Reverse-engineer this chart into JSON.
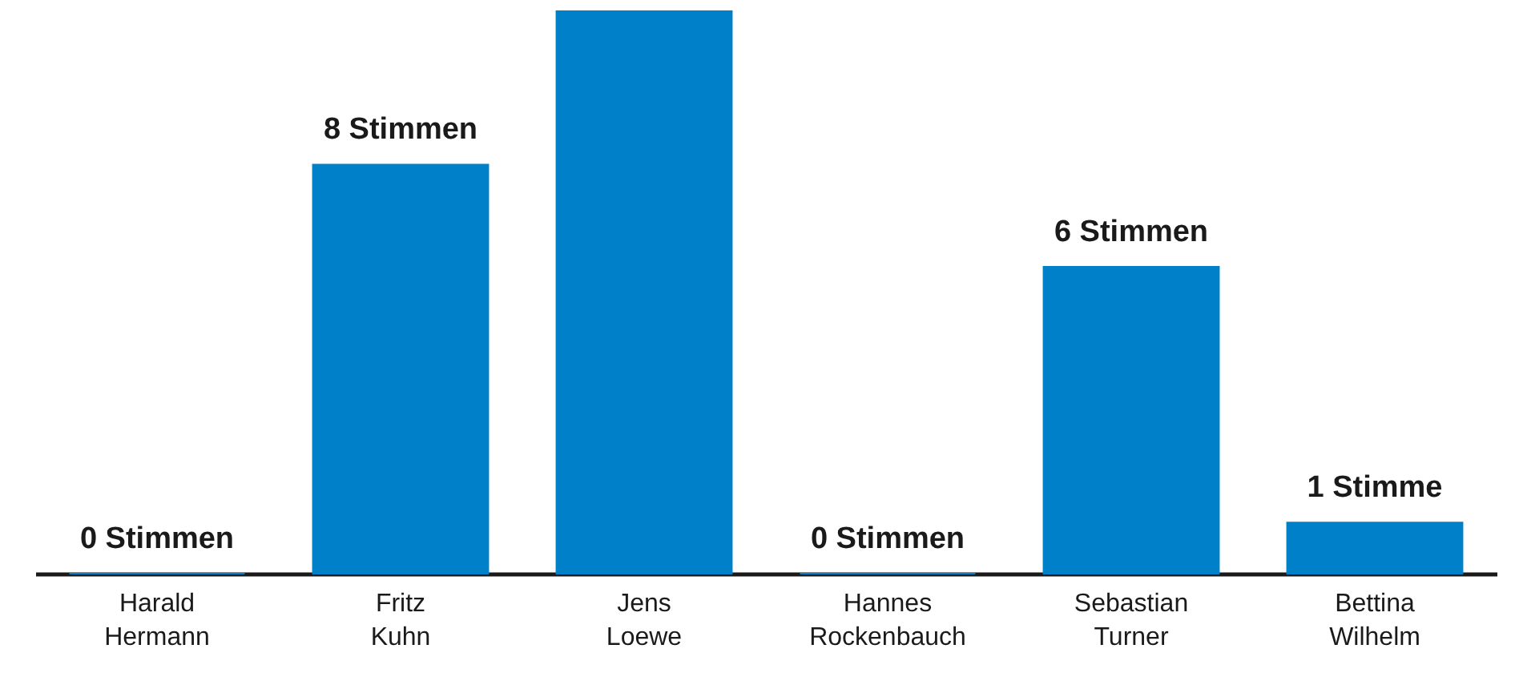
{
  "chart_data": {
    "type": "bar",
    "categories": [
      "Harald Hermann",
      "Fritz Kuhn",
      "Jens Loewe",
      "Hannes Rockenbauch",
      "Sebastian Turner",
      "Bettina Wilhelm"
    ],
    "values": [
      0,
      8,
      11,
      0,
      6,
      1
    ],
    "value_labels": [
      "0 Stimmen",
      "8 Stimmen",
      null,
      "0 Stimmen",
      "6 Stimmen",
      "1 Stimme"
    ],
    "color": "#0080c9"
  }
}
